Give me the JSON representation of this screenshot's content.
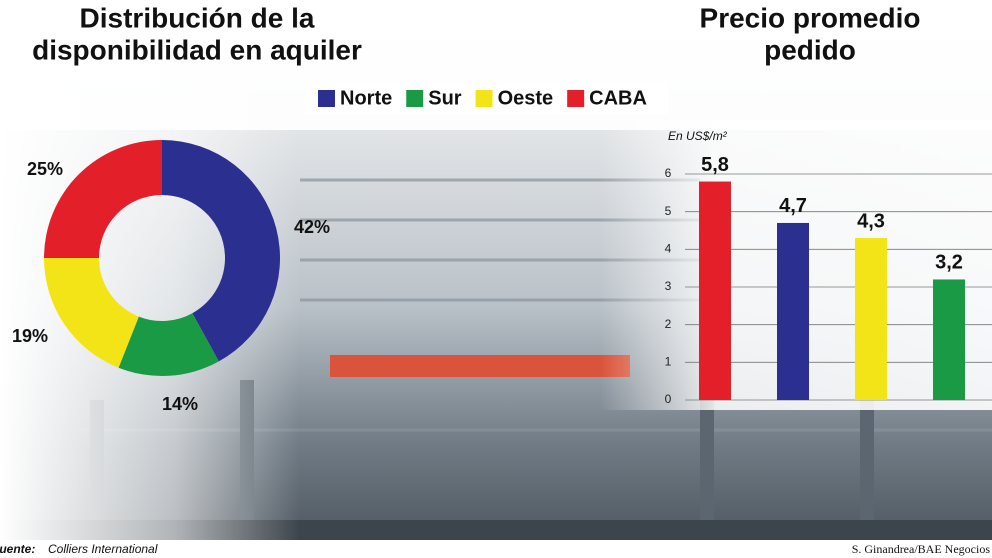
{
  "chart_data": [
    {
      "type": "donut",
      "title": [
        "Distribución de la",
        "disponibilidad en aquiler"
      ],
      "categories": [
        "Norte",
        "Sur",
        "Oeste",
        "CABA"
      ],
      "values": [
        42,
        14,
        19,
        25
      ],
      "value_labels": [
        "42%",
        "14%",
        "19%",
        "25%"
      ],
      "colors": [
        "#2b2f8f",
        "#1a9a45",
        "#f2e416",
        "#e3202a"
      ]
    },
    {
      "type": "bar",
      "title": [
        "Precio promedio",
        "pedido"
      ],
      "y_label": "En US$/m²",
      "categories": [
        null,
        null,
        null,
        null
      ],
      "values": [
        5.8,
        4.7,
        4.3,
        3.2
      ],
      "value_labels": [
        "5,8",
        "4,7",
        "4,3",
        "3,2"
      ],
      "colors": [
        "#e3202a",
        "#2b2f8f",
        "#f2e416",
        "#1a9a45"
      ],
      "ylim": [
        0,
        6
      ],
      "yticks": [
        0,
        1,
        2,
        3,
        4,
        5,
        6
      ],
      "grid": true
    }
  ],
  "source": {
    "label": "Fuente:",
    "text": "Colliers International"
  },
  "credit": "S. Ginandrea/BAE Negocios"
}
